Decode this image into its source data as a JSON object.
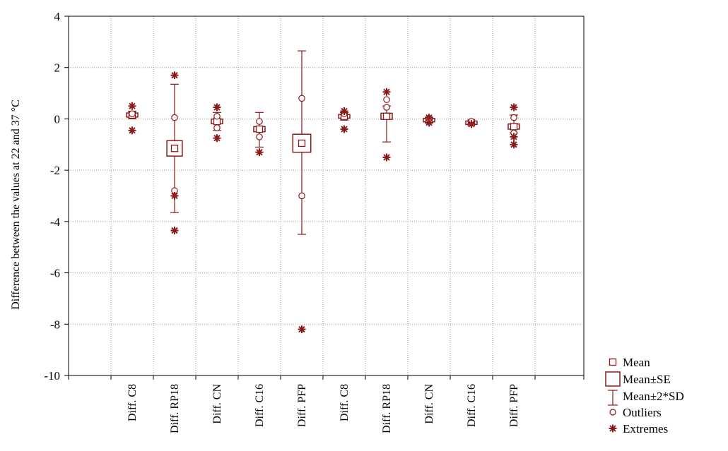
{
  "chart_data": {
    "type": "box",
    "ylabel": "Difference between the values at 22 and 37 °C",
    "ylim": [
      -10,
      4
    ],
    "yticks": [
      4,
      2,
      0,
      -2,
      -4,
      -6,
      -8,
      -10
    ],
    "grid": true,
    "legend_position": "bottom-right",
    "color": "#8b1a1a",
    "categories": [
      "Diff. C8",
      "Diff. RP18",
      "Diff. CN",
      "Diff. C16",
      "Diff. PFP",
      "Diff. C8",
      "Diff. RP18",
      "Diff. CN",
      "Diff. C16",
      "Diff. PFP"
    ],
    "series": [
      {
        "mean": 0.15,
        "se": 0.08,
        "sd2_low": 0.0,
        "sd2_high": 0.3,
        "outliers": [
          0.2
        ],
        "extremes": [
          0.5,
          -0.45
        ]
      },
      {
        "mean": -1.15,
        "se": 0.3,
        "sd2_low": -3.65,
        "sd2_high": 1.35,
        "outliers": [
          0.05,
          -2.8
        ],
        "extremes": [
          1.7,
          -3.0,
          -4.35
        ]
      },
      {
        "mean": -0.1,
        "se": 0.09,
        "sd2_low": -0.45,
        "sd2_high": 0.25,
        "outliers": [
          0.1,
          -0.35
        ],
        "extremes": [
          0.45,
          -0.75
        ]
      },
      {
        "mean": -0.4,
        "se": 0.1,
        "sd2_low": -1.1,
        "sd2_high": 0.25,
        "outliers": [
          -0.1,
          -0.7
        ],
        "extremes": [
          -1.3
        ]
      },
      {
        "mean": -0.95,
        "se": 0.35,
        "sd2_low": -4.5,
        "sd2_high": 2.65,
        "outliers": [
          0.8,
          -3.0
        ],
        "extremes": [
          -8.2
        ]
      },
      {
        "mean": 0.1,
        "se": 0.05,
        "sd2_low": -0.05,
        "sd2_high": 0.25,
        "outliers": [
          0.2
        ],
        "extremes": [
          0.3,
          -0.4
        ]
      },
      {
        "mean": 0.1,
        "se": 0.12,
        "sd2_low": -0.9,
        "sd2_high": 0.5,
        "outliers": [
          0.45,
          0.75
        ],
        "extremes": [
          1.05,
          -1.5
        ]
      },
      {
        "mean": -0.05,
        "se": 0.03,
        "sd2_low": -0.15,
        "sd2_high": 0.05,
        "outliers": [
          0.0
        ],
        "extremes": [
          0.05,
          -0.15
        ]
      },
      {
        "mean": -0.15,
        "se": 0.03,
        "sd2_low": -0.2,
        "sd2_high": -0.1,
        "outliers": [
          -0.1
        ],
        "extremes": [
          -0.2
        ]
      },
      {
        "mean": -0.3,
        "se": 0.1,
        "sd2_low": -0.55,
        "sd2_high": 0.15,
        "outliers": [
          0.05,
          -0.55
        ],
        "extremes": [
          0.45,
          -0.7,
          -1.0
        ]
      }
    ],
    "legend": [
      "Mean",
      "Mean±SE",
      "Mean±2*SD",
      "Outliers",
      "Extremes"
    ]
  }
}
